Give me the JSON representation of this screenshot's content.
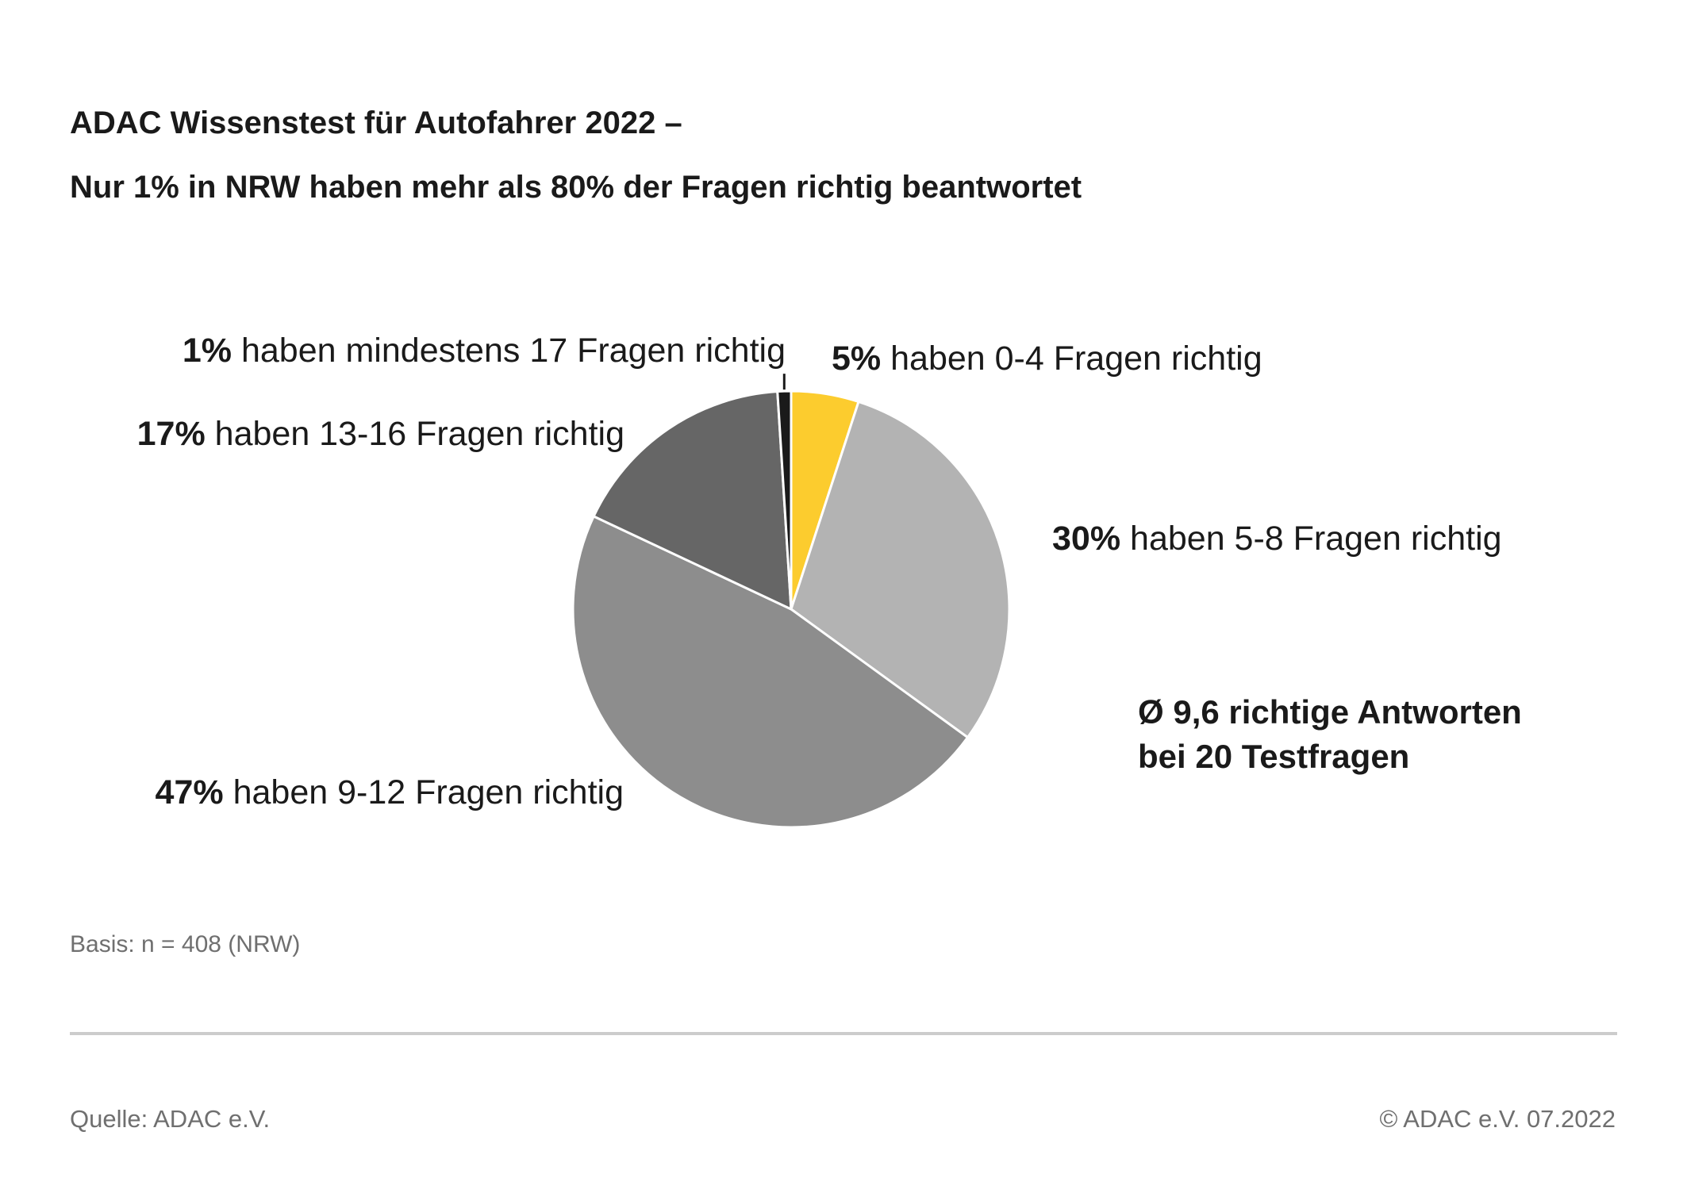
{
  "header": {
    "title_line1": "ADAC Wissenstest für Autofahrer 2022 –",
    "title_line2": "Nur 1% in NRW haben mehr als 80% der Fragen richtig beantwortet"
  },
  "chart_data": {
    "type": "pie",
    "unit": "%",
    "slices": [
      {
        "pct_text": "5%",
        "text": "haben 0-4 Fragen richtig",
        "value": 5,
        "color": "#fccc2e"
      },
      {
        "pct_text": "30%",
        "text": "haben 5-8 Fragen richtig",
        "value": 30,
        "color": "#b3b3b3"
      },
      {
        "pct_text": "47%",
        "text": "haben 9-12 Fragen richtig",
        "value": 47,
        "color": "#8d8d8d"
      },
      {
        "pct_text": "17%",
        "text": "haben 13-16 Fragen richtig",
        "value": 17,
        "color": "#666666"
      },
      {
        "pct_text": "1%",
        "text": "haben mindestens 17 Fragen richtig",
        "value": 1,
        "color": "#1a1a1a"
      }
    ],
    "annotation": {
      "line1": "Ø 9,6 richtige Antworten",
      "line2": "bei 20 Testfragen"
    },
    "legend": "none"
  },
  "footer": {
    "basis": "Basis: n = 408 (NRW)",
    "source": "Quelle: ADAC e.V.",
    "copyright": "© ADAC e.V. 07.2022"
  },
  "colors": {
    "text": "#1a1a1a",
    "muted_text": "#6f6f6f",
    "accent": "#fccc2e",
    "rule": "#cccccc"
  }
}
